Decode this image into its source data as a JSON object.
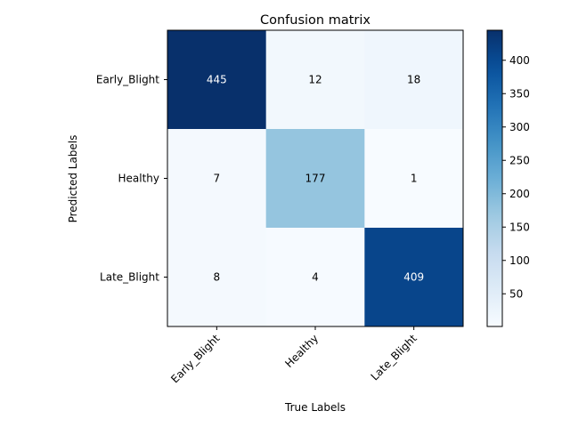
{
  "chart_data": {
    "type": "heatmap",
    "title": "Confusion matrix",
    "xlabel": "True Labels",
    "ylabel": "Predicted Labels",
    "x_categories": [
      "Early_Blight",
      "Healthy",
      "Late_Blight"
    ],
    "y_categories": [
      "Early_Blight",
      "Healthy",
      "Late_Blight"
    ],
    "values": [
      [
        445,
        12,
        18
      ],
      [
        7,
        177,
        1
      ],
      [
        8,
        4,
        409
      ]
    ],
    "colormap": "Blues",
    "colorbar": {
      "min": 1,
      "max": 445,
      "ticks": [
        50,
        100,
        150,
        200,
        250,
        300,
        350,
        400
      ]
    },
    "grid": false
  }
}
